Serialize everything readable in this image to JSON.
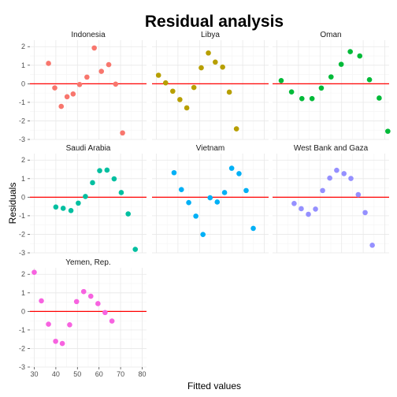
{
  "chart_data": {
    "type": "scatter",
    "title": "Residual analysis",
    "xlabel": "Fitted values",
    "ylabel": "Residuals",
    "xlim": [
      28,
      82
    ],
    "ylim": [
      -3,
      2.35
    ],
    "x_ticks": [
      30,
      40,
      50,
      60,
      70,
      80
    ],
    "y_ticks": [
      -3,
      -2,
      -1,
      0,
      1,
      2
    ],
    "y_tick_labels": [
      "-3",
      "-2",
      "-1",
      "0",
      "1",
      "2"
    ],
    "reference_line": {
      "y": 0,
      "color": "#ff0000"
    },
    "grid": true,
    "facets": [
      {
        "name": "Indonesia",
        "color": "#f8766d",
        "points": [
          [
            36.6,
            1.1
          ],
          [
            39.5,
            -0.22
          ],
          [
            42.5,
            -1.22
          ],
          [
            45.2,
            -0.7
          ],
          [
            48,
            -0.55
          ],
          [
            51,
            -0.04
          ],
          [
            54.4,
            0.36
          ],
          [
            57.8,
            1.93
          ],
          [
            61.1,
            0.67
          ],
          [
            64.5,
            1.03
          ],
          [
            67.7,
            -0.02
          ],
          [
            70.9,
            -2.65
          ]
        ]
      },
      {
        "name": "Libya",
        "color": "#b79f00",
        "points": [
          [
            31,
            0.46
          ],
          [
            34.3,
            0.05
          ],
          [
            37.6,
            -0.4
          ],
          [
            40.9,
            -0.85
          ],
          [
            44.1,
            -1.3
          ],
          [
            47.4,
            -0.2
          ],
          [
            50.8,
            0.86
          ],
          [
            54.1,
            1.66
          ],
          [
            57.3,
            1.17
          ],
          [
            60.7,
            0.9
          ],
          [
            63.8,
            -0.45
          ],
          [
            67.1,
            -2.43
          ]
        ]
      },
      {
        "name": "Oman",
        "color": "#00ba38",
        "points": [
          [
            32,
            0.17
          ],
          [
            36.8,
            -0.44
          ],
          [
            41.6,
            -0.8
          ],
          [
            46.3,
            -0.8
          ],
          [
            50.6,
            -0.23
          ],
          [
            55.1,
            0.37
          ],
          [
            59.8,
            1.05
          ],
          [
            64,
            1.73
          ],
          [
            68.4,
            1.5
          ],
          [
            72.9,
            0.22
          ],
          [
            77.4,
            -0.77
          ],
          [
            81.4,
            -2.56
          ]
        ]
      },
      {
        "name": "Saudi Arabia",
        "color": "#00bfa0",
        "points": [
          [
            40,
            -0.53
          ],
          [
            43.4,
            -0.6
          ],
          [
            47,
            -0.72
          ],
          [
            50.4,
            -0.32
          ],
          [
            53.7,
            0.04
          ],
          [
            57,
            0.78
          ],
          [
            60.3,
            1.43
          ],
          [
            63.7,
            1.46
          ],
          [
            67,
            0.99
          ],
          [
            70.3,
            0.25
          ],
          [
            73.5,
            -0.9
          ],
          [
            76.8,
            -2.81
          ]
        ]
      },
      {
        "name": "Vietnam",
        "color": "#00b0f6",
        "points": [
          [
            38.2,
            1.32
          ],
          [
            41.6,
            0.41
          ],
          [
            45,
            -0.29
          ],
          [
            48.3,
            -1.02
          ],
          [
            51.6,
            -2.01
          ],
          [
            54.9,
            -0.03
          ],
          [
            58.2,
            -0.26
          ],
          [
            61.6,
            0.25
          ],
          [
            64.9,
            1.56
          ],
          [
            68.3,
            1.27
          ],
          [
            71.6,
            0.36
          ],
          [
            74.9,
            -1.68
          ]
        ]
      },
      {
        "name": "West Bank and Gaza",
        "color": "#9590ff",
        "points": [
          [
            38,
            -0.34
          ],
          [
            41.3,
            -0.62
          ],
          [
            44.6,
            -0.92
          ],
          [
            47.9,
            -0.64
          ],
          [
            51.2,
            0.36
          ],
          [
            54.5,
            1.03
          ],
          [
            57.7,
            1.45
          ],
          [
            61.1,
            1.27
          ],
          [
            64.3,
            1.01
          ],
          [
            67.7,
            0.14
          ],
          [
            70.9,
            -0.83
          ],
          [
            74.2,
            -2.59
          ]
        ]
      },
      {
        "name": "Yemen, Rep.",
        "color": "#f763e0",
        "points": [
          [
            30,
            2.11
          ],
          [
            33.3,
            0.57
          ],
          [
            36.6,
            -0.69
          ],
          [
            39.9,
            -1.61
          ],
          [
            43,
            -1.73
          ],
          [
            46.4,
            -0.72
          ],
          [
            49.6,
            0.53
          ],
          [
            52.9,
            1.07
          ],
          [
            56.2,
            0.82
          ],
          [
            59.5,
            0.42
          ],
          [
            62.8,
            -0.06
          ],
          [
            66,
            -0.52
          ]
        ]
      }
    ]
  }
}
